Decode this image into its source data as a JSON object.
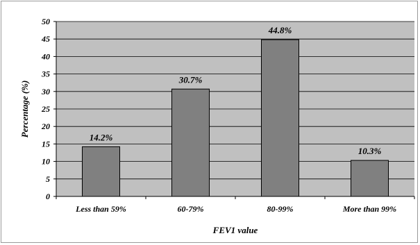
{
  "chart_data": {
    "type": "bar",
    "categories": [
      "Less than 59%",
      "60-79%",
      "80-99%",
      "More than 99%"
    ],
    "values": [
      14.2,
      30.7,
      44.8,
      10.3
    ],
    "data_labels": [
      "14.2%",
      "30.7%",
      "44.8%",
      "10.3%"
    ],
    "title": "",
    "xlabel": "FEV1 value",
    "ylabel": "Percentage (%)",
    "ylim": [
      0,
      50
    ],
    "yticks": [
      0,
      5,
      10,
      15,
      20,
      25,
      30,
      35,
      40,
      45,
      50
    ],
    "grid": true,
    "legend": "none",
    "colors": {
      "plot_background": "#c0c0c0",
      "bar_fill": "#808080",
      "bar_stroke": "#000000",
      "gridline": "#000000"
    }
  }
}
